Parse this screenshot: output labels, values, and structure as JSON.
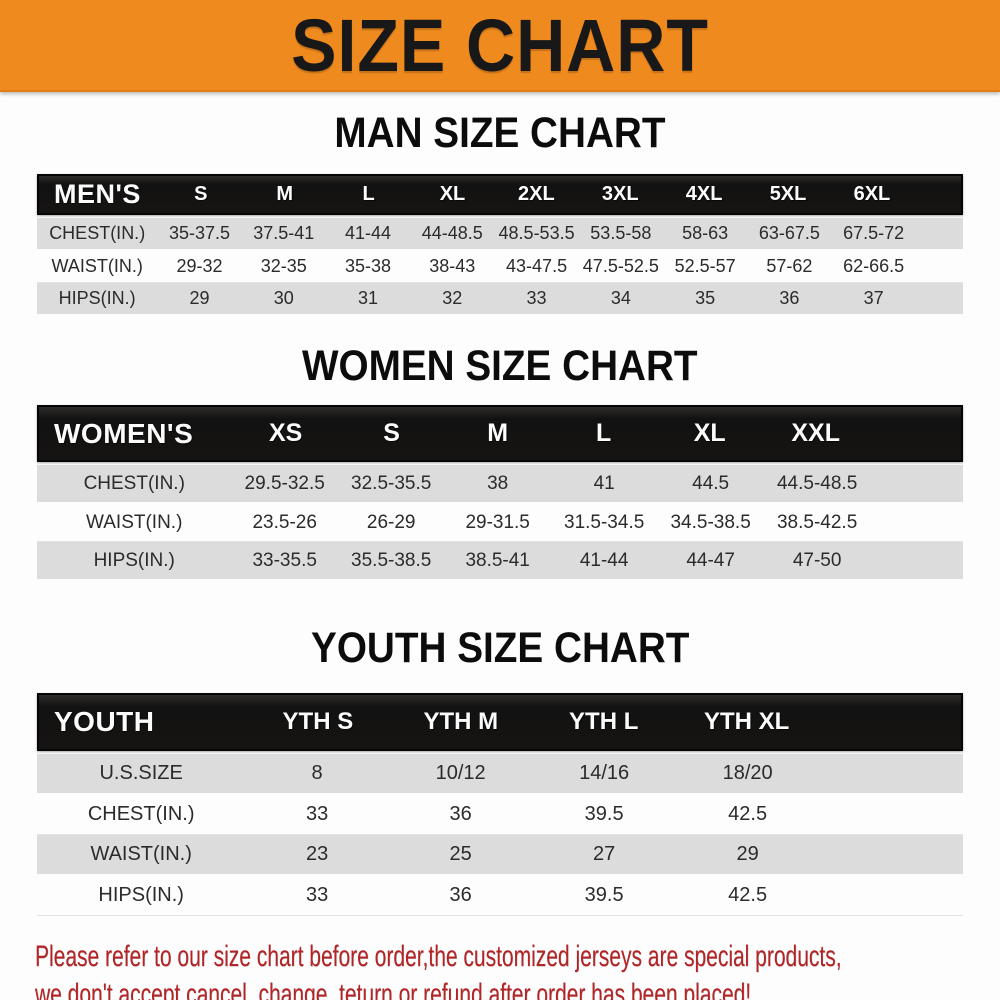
{
  "banner": {
    "title": "SIZE CHART",
    "bg_color": "#ef8a1f",
    "text_color": "#181818"
  },
  "sections": [
    {
      "heading": "MAN SIZE CHART",
      "table": {
        "label": "MEN'S",
        "columns": [
          "S",
          "M",
          "L",
          "XL",
          "2XL",
          "3XL",
          "4XL",
          "5XL",
          "6XL"
        ],
        "rows": [
          {
            "label": "CHEST(IN.)",
            "values": [
              "35-37.5",
              "37.5-41",
              "41-44",
              "44-48.5",
              "48.5-53.5",
              "53.5-58",
              "58-63",
              "63-67.5",
              "67.5-72"
            ]
          },
          {
            "label": "WAIST(IN.)",
            "values": [
              "29-32",
              "32-35",
              "35-38",
              "38-43",
              "43-47.5",
              "47.5-52.5",
              "52.5-57",
              "57-62",
              "62-66.5"
            ]
          },
          {
            "label": "HIPS(IN.)",
            "values": [
              "29",
              "30",
              "31",
              "32",
              "33",
              "34",
              "35",
              "36",
              "37"
            ]
          }
        ]
      }
    },
    {
      "heading": "WOMEN SIZE CHART",
      "table": {
        "label": "WOMEN'S",
        "columns": [
          "XS",
          "S",
          "M",
          "L",
          "XL",
          "XXL"
        ],
        "rows": [
          {
            "label": "CHEST(IN.)",
            "values": [
              "29.5-32.5",
              "32.5-35.5",
              "38",
              "41",
              "44.5",
              "44.5-48.5"
            ]
          },
          {
            "label": "WAIST(IN.)",
            "values": [
              "23.5-26",
              "26-29",
              "29-31.5",
              "31.5-34.5",
              "34.5-38.5",
              "38.5-42.5"
            ]
          },
          {
            "label": "HIPS(IN.)",
            "values": [
              "33-35.5",
              "35.5-38.5",
              "38.5-41",
              "41-44",
              "44-47",
              "47-50"
            ]
          }
        ]
      }
    },
    {
      "heading": "YOUTH SIZE CHART",
      "table": {
        "label": "YOUTH",
        "columns": [
          "YTH S",
          "YTH M",
          "YTH L",
          "YTH XL"
        ],
        "rows": [
          {
            "label": "U.S.SIZE",
            "values": [
              "8",
              "10/12",
              "14/16",
              "18/20"
            ]
          },
          {
            "label": "CHEST(IN.)",
            "values": [
              "33",
              "36",
              "39.5",
              "42.5"
            ]
          },
          {
            "label": "WAIST(IN.)",
            "values": [
              "23",
              "25",
              "27",
              "29"
            ]
          },
          {
            "label": "HIPS(IN.)",
            "values": [
              "33",
              "36",
              "39.5",
              "42.5"
            ]
          }
        ]
      }
    }
  ],
  "footer": {
    "line1": "Please refer to our size chart before order,the customized jerseys are special products,",
    "line2": "we don't accept cancel, change, teturn or refund after order has been placed!",
    "text_color": "#b22426"
  }
}
